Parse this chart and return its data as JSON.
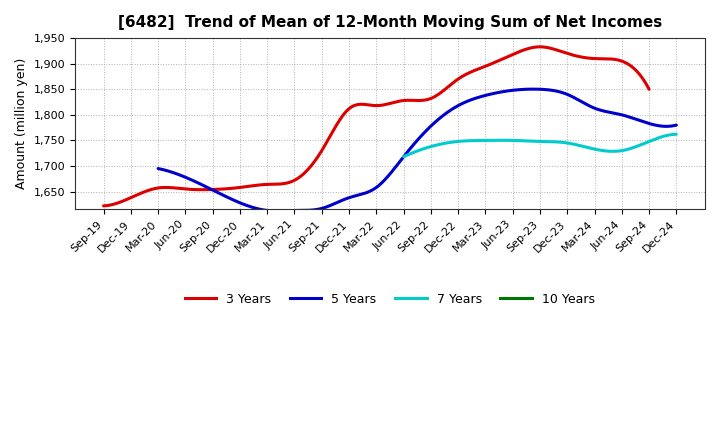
{
  "title": "[6482]  Trend of Mean of 12-Month Moving Sum of Net Incomes",
  "ylabel": "Amount (million yen)",
  "background_color": "#ffffff",
  "grid_color": "#aaaaaa",
  "x_labels": [
    "Sep-19",
    "Dec-19",
    "Mar-20",
    "Jun-20",
    "Sep-20",
    "Dec-20",
    "Mar-21",
    "Jun-21",
    "Sep-21",
    "Dec-21",
    "Mar-22",
    "Jun-22",
    "Sep-22",
    "Dec-22",
    "Mar-23",
    "Jun-23",
    "Sep-23",
    "Dec-23",
    "Mar-24",
    "Jun-24",
    "Sep-24",
    "Dec-24"
  ],
  "ylim": [
    1615,
    1950
  ],
  "yticks": [
    1650,
    1700,
    1750,
    1800,
    1850,
    1900,
    1950
  ],
  "series": {
    "3 Years": {
      "color": "#dd0000",
      "values": [
        1622,
        1638,
        1657,
        1655,
        1654,
        1658,
        1664,
        1672,
        1730,
        1812,
        1818,
        1828,
        1832,
        1870,
        1895,
        1918,
        1933,
        1920,
        1910,
        1905,
        1850,
        null
      ]
    },
    "5 Years": {
      "color": "#0000cc",
      "values": [
        null,
        null,
        1695,
        1678,
        1653,
        1628,
        1613,
        1613,
        1617,
        1638,
        1658,
        1718,
        1778,
        1818,
        1838,
        1848,
        1850,
        1840,
        1813,
        1800,
        1783,
        1780
      ]
    },
    "7 Years": {
      "color": "#00cccc",
      "values": [
        null,
        null,
        null,
        null,
        null,
        null,
        null,
        null,
        null,
        null,
        null,
        1718,
        1738,
        1748,
        1750,
        1750,
        1748,
        1745,
        1733,
        1730,
        1748,
        1762
      ]
    },
    "10 Years": {
      "color": "#007700",
      "values": [
        null,
        null,
        null,
        null,
        null,
        null,
        null,
        null,
        null,
        null,
        null,
        null,
        null,
        null,
        null,
        null,
        null,
        null,
        null,
        null,
        null,
        null
      ]
    }
  },
  "legend_order": [
    "3 Years",
    "5 Years",
    "7 Years",
    "10 Years"
  ]
}
